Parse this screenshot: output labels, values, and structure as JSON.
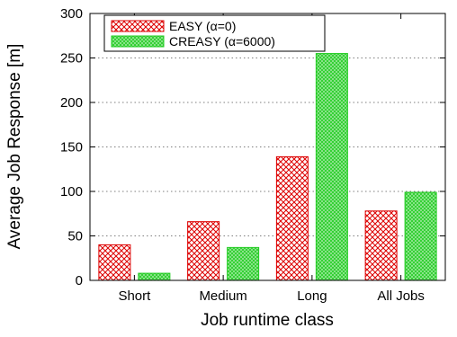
{
  "chart_data": {
    "type": "bar",
    "title": "",
    "xlabel": "Job runtime class",
    "ylabel": "Average Job Response [m]",
    "categories": [
      "Short",
      "Medium",
      "Long",
      "All Jobs"
    ],
    "ylim": [
      0,
      300
    ],
    "yticks": [
      0,
      50,
      100,
      150,
      200,
      250,
      300
    ],
    "grid": true,
    "legend_position": "top-left",
    "series": [
      {
        "name": "EASY (α=0)",
        "values": [
          40,
          66,
          139,
          78
        ],
        "color": "#dd0000"
      },
      {
        "name": "CREASY (α=6000)",
        "values": [
          8,
          37,
          255,
          99
        ],
        "color": "#22cc22"
      }
    ]
  }
}
